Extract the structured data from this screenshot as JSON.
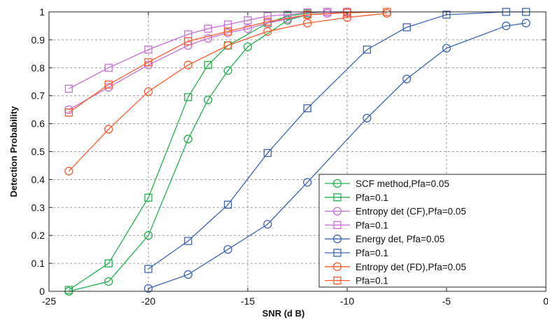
{
  "chart_data": {
    "type": "line",
    "xlabel": "SNR (d B)",
    "ylabel": "Detection Probability",
    "xlim": [
      -25,
      0
    ],
    "ylim": [
      0,
      1
    ],
    "x_ticks": [
      -25,
      -20,
      -15,
      -10,
      -5,
      0
    ],
    "y_ticks": [
      0,
      0.1,
      0.2,
      0.3,
      0.4,
      0.5,
      0.6,
      0.7,
      0.8,
      0.9,
      1
    ],
    "x_tick_labels": [
      "-25",
      "-20",
      "-15",
      "-10",
      "-5",
      "0"
    ],
    "y_tick_labels": [
      "0",
      "0.1",
      "0.2",
      "0.3",
      "0.4",
      "0.5",
      "0.6",
      "0.7",
      "0.8",
      "0.9",
      "1"
    ],
    "grid": true,
    "legend_position": "bottom-right",
    "series": [
      {
        "name": "SCF method,Pfa=0.05",
        "color": "#22b14c",
        "marker": "circle",
        "x": [
          -24,
          -22,
          -20,
          -18,
          -17,
          -16,
          -15,
          -13,
          -12
        ],
        "y": [
          0.0,
          0.035,
          0.2,
          0.545,
          0.685,
          0.79,
          0.875,
          0.97,
          0.99
        ]
      },
      {
        "name": "Pfa=0.1",
        "color": "#22b14c",
        "marker": "square",
        "x": [
          -24,
          -22,
          -20,
          -18,
          -17,
          -16,
          -14,
          -13,
          -12,
          -11
        ],
        "y": [
          0.005,
          0.1,
          0.335,
          0.695,
          0.81,
          0.88,
          0.96,
          0.985,
          0.995,
          1.0
        ]
      },
      {
        "name": "Entropy det (CF),Pfa=0.05",
        "color": "#c86dd7",
        "marker": "circle",
        "x": [
          -24,
          -22,
          -20,
          -18,
          -17,
          -16,
          -15,
          -14,
          -13,
          -12,
          -11,
          -10
        ],
        "y": [
          0.65,
          0.73,
          0.81,
          0.88,
          0.905,
          0.925,
          0.94,
          0.96,
          0.975,
          0.99,
          0.995,
          1.0
        ]
      },
      {
        "name": "Pfa=0.1",
        "color": "#c86dd7",
        "marker": "square",
        "x": [
          -24,
          -22,
          -20,
          -18,
          -17,
          -16,
          -15,
          -14,
          -13,
          -12,
          -11,
          -10
        ],
        "y": [
          0.725,
          0.8,
          0.865,
          0.92,
          0.94,
          0.955,
          0.97,
          0.985,
          0.99,
          0.998,
          1.0,
          1.0
        ]
      },
      {
        "name": "Energy det, Pfa=0.05",
        "color": "#3b64b4",
        "marker": "circle",
        "x": [
          -20,
          -18,
          -16,
          -14,
          -12,
          -9,
          -7,
          -5,
          -2,
          -1
        ],
        "y": [
          0.01,
          0.06,
          0.15,
          0.24,
          0.39,
          0.62,
          0.76,
          0.87,
          0.95,
          0.96
        ]
      },
      {
        "name": "Pfa=0.1",
        "color": "#3b64b4",
        "marker": "square",
        "x": [
          -20,
          -18,
          -16,
          -14,
          -12,
          -9,
          -7,
          -5,
          -2,
          -1
        ],
        "y": [
          0.08,
          0.18,
          0.31,
          0.495,
          0.655,
          0.865,
          0.945,
          0.99,
          1.0,
          1.0
        ]
      },
      {
        "name": "Entropy det (FD),Pfa=0.05",
        "color": "#ff5a2a",
        "marker": "circle",
        "x": [
          -24,
          -22,
          -20,
          -18,
          -16,
          -14,
          -12,
          -10,
          -8
        ],
        "y": [
          0.43,
          0.58,
          0.715,
          0.81,
          0.88,
          0.93,
          0.96,
          0.98,
          0.995
        ]
      },
      {
        "name": "Pfa=0.1",
        "color": "#ff5a2a",
        "marker": "square",
        "x": [
          -24,
          -22,
          -20,
          -18,
          -16,
          -14,
          -12,
          -10,
          -8
        ],
        "y": [
          0.64,
          0.74,
          0.82,
          0.895,
          0.93,
          0.965,
          0.99,
          0.997,
          1.0
        ]
      }
    ]
  }
}
